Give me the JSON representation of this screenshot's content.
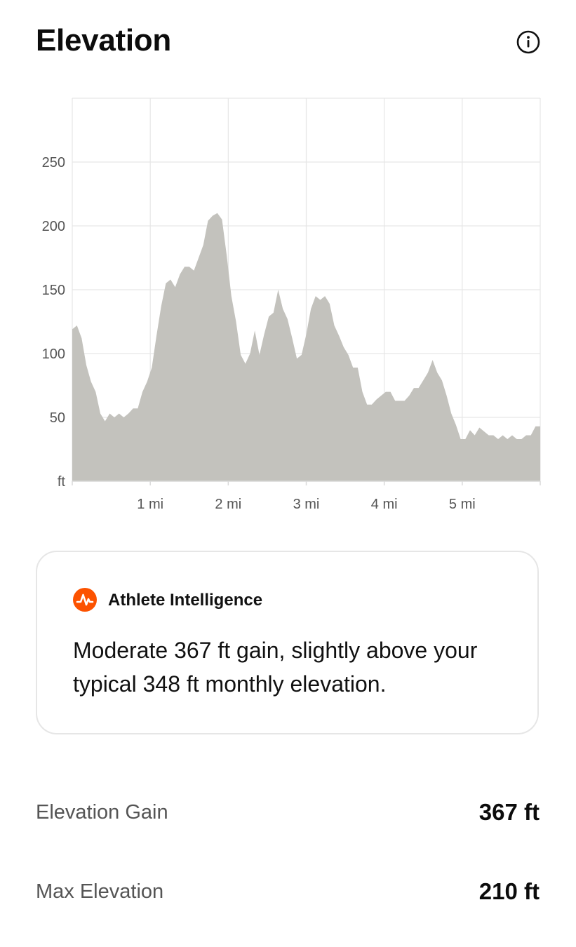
{
  "header": {
    "title": "Elevation",
    "info_icon": "info-circle-icon"
  },
  "chart_data": {
    "type": "area",
    "title": "",
    "xlabel": "",
    "ylabel": "ft",
    "x_unit": "mi",
    "xlim": [
      0,
      6.0
    ],
    "ylim": [
      0,
      300
    ],
    "x_ticks": [
      "1 mi",
      "2 mi",
      "3 mi",
      "4 mi",
      "5 mi"
    ],
    "y_ticks": [
      "50",
      "100",
      "150",
      "200",
      "250"
    ],
    "y_unit_label": "ft",
    "grid": true,
    "fill_color": "#c3c2bd",
    "series": [
      {
        "x": [
          0.0,
          0.06,
          0.12,
          0.18,
          0.24,
          0.3,
          0.36,
          0.42,
          0.48,
          0.54,
          0.6,
          0.66,
          0.72,
          0.78,
          0.84,
          0.9,
          0.96,
          1.02,
          1.08,
          1.14,
          1.2,
          1.26,
          1.32,
          1.38,
          1.44,
          1.5,
          1.56,
          1.62,
          1.68,
          1.74,
          1.8,
          1.86,
          1.92,
          1.98,
          2.04,
          2.1,
          2.16,
          2.22,
          2.28,
          2.34,
          2.4,
          2.46,
          2.52,
          2.58,
          2.64,
          2.7,
          2.76,
          2.82,
          2.88,
          2.94,
          3.0,
          3.06,
          3.12,
          3.18,
          3.24,
          3.3,
          3.36,
          3.42,
          3.48,
          3.54,
          3.6,
          3.66,
          3.72,
          3.78,
          3.84,
          3.9,
          3.96,
          4.02,
          4.08,
          4.14,
          4.2,
          4.26,
          4.32,
          4.38,
          4.44,
          4.5,
          4.56,
          4.62,
          4.68,
          4.74,
          4.8,
          4.86,
          4.92,
          4.98,
          5.04,
          5.1,
          5.16,
          5.22,
          5.28,
          5.34,
          5.4,
          5.46,
          5.52,
          5.58,
          5.64,
          5.7,
          5.76,
          5.82,
          5.88,
          5.94,
          6.0
        ],
        "values": [
          119,
          122,
          112,
          91,
          78,
          70,
          53,
          47,
          53,
          50,
          53,
          50,
          53,
          57,
          57,
          70,
          78,
          89,
          114,
          137,
          155,
          158,
          152,
          162,
          168,
          168,
          165,
          175,
          185,
          204,
          208,
          210,
          205,
          177,
          145,
          125,
          99,
          92,
          100,
          118,
          99,
          115,
          129,
          132,
          150,
          135,
          127,
          112,
          96,
          99,
          115,
          135,
          145,
          142,
          145,
          139,
          122,
          114,
          105,
          99,
          89,
          89,
          70,
          60,
          60,
          64,
          67,
          70,
          70,
          63,
          63,
          63,
          67,
          73,
          73,
          79,
          85,
          95,
          85,
          79,
          67,
          53,
          44,
          33,
          33,
          40,
          36,
          42,
          39,
          36,
          36,
          33,
          36,
          33,
          36,
          33,
          33,
          36,
          36,
          43,
          43
        ]
      }
    ]
  },
  "insight_card": {
    "icon": "strava-logo-icon",
    "heading": "Athlete Intelligence",
    "body": "Moderate 367 ft gain, slightly above your typical 348 ft monthly elevation."
  },
  "stats": [
    {
      "label": "Elevation Gain",
      "value": "367 ft"
    },
    {
      "label": "Max Elevation",
      "value": "210 ft"
    }
  ]
}
